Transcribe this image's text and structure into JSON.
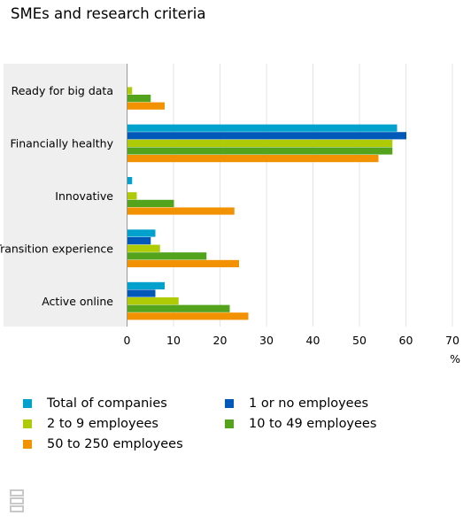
{
  "title": "SMEs and research criteria",
  "chart_data": {
    "type": "bar",
    "orientation": "horizontal",
    "title": "SMEs and research criteria",
    "xlabel": "%",
    "ylabel": "",
    "xlim": [
      0,
      70
    ],
    "x_ticks": [
      0,
      10,
      20,
      30,
      40,
      50,
      60,
      70
    ],
    "grid": true,
    "legend_position": "bottom",
    "categories": [
      "Ready for big data",
      "Financially healthy",
      "Innovative",
      "Transition experience",
      "Active online"
    ],
    "series": [
      {
        "name": "Total of companies",
        "color": "#00A1CD",
        "values": [
          0,
          58,
          1,
          6,
          8
        ]
      },
      {
        "name": "1 or no employees",
        "color": "#0058B8",
        "values": [
          0,
          60,
          0,
          5,
          6
        ]
      },
      {
        "name": "2 to 9 employees",
        "color": "#AFCB05",
        "values": [
          1,
          57,
          2,
          7,
          11
        ]
      },
      {
        "name": "10 to 49 employees",
        "color": "#53A31D",
        "values": [
          5,
          57,
          10,
          17,
          22
        ]
      },
      {
        "name": "50 to 250 employees",
        "color": "#F39200",
        "values": [
          8,
          54,
          23,
          24,
          26
        ]
      }
    ]
  },
  "legend_order": [
    0,
    1,
    2,
    3,
    4
  ],
  "logo": {
    "name": "cbs-logo-icon",
    "text": "cbs"
  }
}
